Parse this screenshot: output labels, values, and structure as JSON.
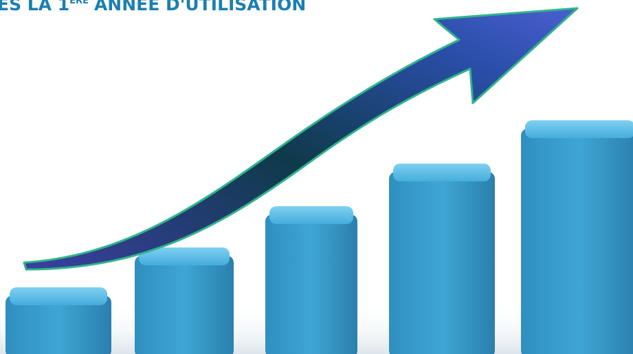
{
  "header": {
    "text_start": "ES LA 1",
    "superscript": "ÈRE",
    "text_end": "ANNÉE D'UTILISATION"
  }
}
